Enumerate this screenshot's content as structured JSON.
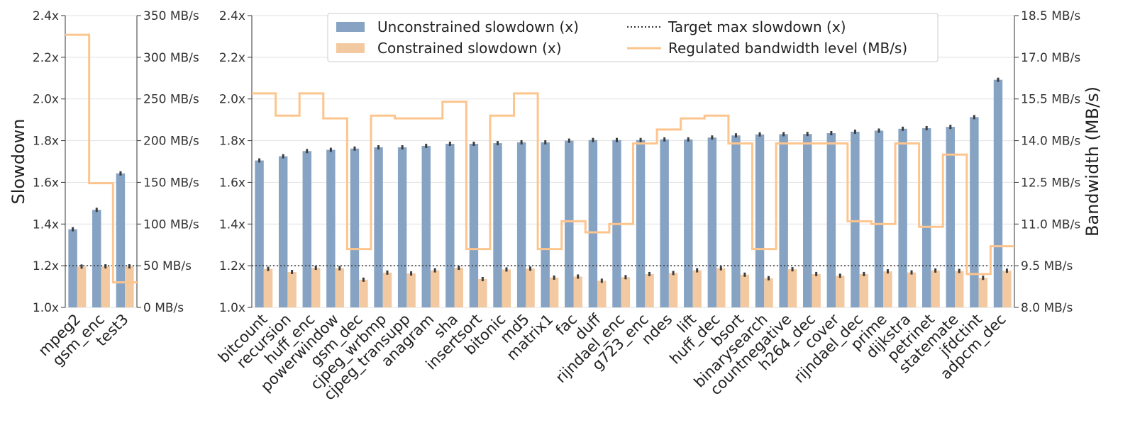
{
  "colors": {
    "unconstrained": "#86a3c3",
    "constrained": "#f2c9a0",
    "bandwidth_line": "#fdc58e",
    "target": "#333333",
    "grid": "#e1e1e1",
    "errorbar": "#3d3d3d"
  },
  "chart_data": [
    {
      "type": "bar",
      "panel": "left",
      "ylabel": "Slowdown",
      "ylim": [
        1.0,
        2.4
      ],
      "yticks": [
        "1.0x",
        "1.2x",
        "1.4x",
        "1.6x",
        "1.8x",
        "2.0x",
        "2.2x",
        "2.4x"
      ],
      "y2lim": [
        0,
        350
      ],
      "y2ticks": [
        "0 MB/s",
        "50 MB/s",
        "100 MB/s",
        "150 MB/s",
        "200 MB/s",
        "250 MB/s",
        "300 MB/s",
        "350 MB/s"
      ],
      "categories": [
        "mpeg2",
        "gsm_enc",
        "test3"
      ],
      "series": [
        {
          "name": "Unconstrained slowdown (x)",
          "values": [
            1.375,
            1.468,
            1.643
          ]
        },
        {
          "name": "Constrained slowdown (x)",
          "values": [
            1.196,
            1.197,
            1.197
          ]
        }
      ],
      "target_max_slowdown": 1.2,
      "bandwidth_mbps": [
        327,
        149,
        30
      ],
      "grid": true
    },
    {
      "type": "bar",
      "panel": "right",
      "ylim": [
        1.0,
        2.4
      ],
      "yticks": [
        "1.0x",
        "1.2x",
        "1.4x",
        "1.6x",
        "1.8x",
        "2.0x",
        "2.2x",
        "2.4x"
      ],
      "y2label": "Bandwidth (MB/s)",
      "y2lim": [
        8.0,
        18.5
      ],
      "y2ticks": [
        "8.0 MB/s",
        "9.5 MB/s",
        "11.0 MB/s",
        "12.5 MB/s",
        "14.0 MB/s",
        "15.5 MB/s",
        "17.0 MB/s",
        "18.5 MB/s"
      ],
      "categories": [
        "bitcount",
        "recursion",
        "huff_enc",
        "powerwindow",
        "gsm_dec",
        "cjpeg_wrbmp",
        "cjpeg_transupp",
        "anagram",
        "sha",
        "insertsort",
        "bitonic",
        "md5",
        "matrix1",
        "fac",
        "duff",
        "rijndael_enc",
        "g723_enc",
        "ndes",
        "lift",
        "huff_dec",
        "bsort",
        "binarysearch",
        "countnegative",
        "h264_dec",
        "cover",
        "rijndael_dec",
        "prime",
        "dijkstra",
        "petrinet",
        "statemate",
        "jfdctint",
        "adpcm_dec"
      ],
      "series": [
        {
          "name": "Unconstrained slowdown (x)",
          "values": [
            1.705,
            1.725,
            1.75,
            1.756,
            1.762,
            1.768,
            1.768,
            1.775,
            1.785,
            1.785,
            1.788,
            1.792,
            1.792,
            1.8,
            1.803,
            1.803,
            1.803,
            1.806,
            1.806,
            1.815,
            1.825,
            1.83,
            1.831,
            1.832,
            1.836,
            1.843,
            1.848,
            1.857,
            1.86,
            1.866,
            1.913,
            2.092
          ]
        },
        {
          "name": "Constrained slowdown (x)",
          "values": [
            1.185,
            1.17,
            1.19,
            1.188,
            1.133,
            1.167,
            1.163,
            1.178,
            1.19,
            1.136,
            1.182,
            1.186,
            1.143,
            1.148,
            1.128,
            1.145,
            1.16,
            1.165,
            1.178,
            1.188,
            1.157,
            1.14,
            1.183,
            1.16,
            1.152,
            1.16,
            1.173,
            1.168,
            1.177,
            1.175,
            1.142,
            1.176
          ]
        }
      ],
      "target_max_slowdown": 1.2,
      "bandwidth_mbps": [
        15.7,
        14.9,
        15.7,
        14.8,
        10.1,
        14.9,
        14.8,
        14.8,
        15.4,
        10.1,
        14.9,
        15.7,
        10.1,
        11.1,
        10.7,
        11.0,
        13.9,
        14.4,
        14.8,
        14.9,
        13.9,
        10.1,
        13.9,
        13.9,
        13.9,
        11.1,
        11.0,
        13.9,
        10.9,
        13.5,
        9.2,
        10.2
      ],
      "grid": true
    }
  ],
  "legend": {
    "items": [
      {
        "label": "Unconstrained slowdown (x)",
        "kind": "bar",
        "color_key": "unconstrained"
      },
      {
        "label": "Constrained slowdown (x)",
        "kind": "bar",
        "color_key": "constrained"
      },
      {
        "label": "Target max slowdown (x)",
        "kind": "dotted",
        "color_key": "target"
      },
      {
        "label": "Regulated bandwidth level (MB/s)",
        "kind": "line",
        "color_key": "bandwidth_line"
      }
    ]
  }
}
